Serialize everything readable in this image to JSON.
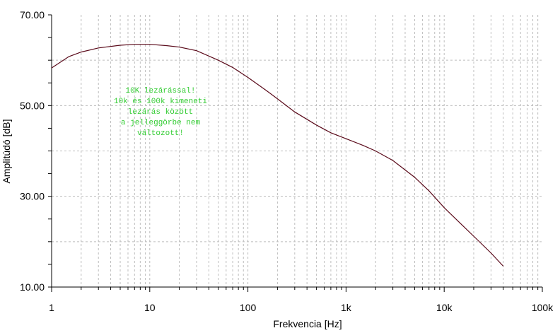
{
  "chart_data": {
    "type": "line",
    "xscale": "log",
    "xlim": [
      1,
      100000
    ],
    "ylim": [
      10,
      70
    ],
    "xlabel": "Frekvencia [Hz]",
    "ylabel": "Amplitúdó [dB]",
    "x_tick_labels": [
      "1",
      "10",
      "100",
      "1k",
      "10k",
      "100k"
    ],
    "y_tick_labels": [
      "10.00",
      "30.00",
      "50.00",
      "70.00"
    ],
    "grid": true,
    "colors": {
      "line": "#5a0a1a",
      "annotation": "#33cc33",
      "grid": "#bdbdbd",
      "axis": "#000000"
    },
    "series": [
      {
        "x": [
          1,
          1.5,
          2,
          3,
          5,
          7,
          10,
          15,
          20,
          30,
          50,
          70,
          100,
          150,
          200,
          300,
          500,
          700,
          1000,
          1500,
          2000,
          3000,
          5000,
          7000,
          10000,
          15000,
          20000,
          30000,
          40000
        ],
        "values": [
          58.3,
          60.8,
          61.8,
          62.7,
          63.3,
          63.5,
          63.5,
          63.2,
          62.9,
          62.1,
          60.0,
          58.4,
          56.2,
          53.5,
          51.5,
          48.6,
          45.7,
          44.0,
          42.7,
          41.2,
          40.0,
          37.9,
          34.2,
          31.2,
          27.5,
          23.8,
          21.2,
          17.5,
          14.6
        ]
      }
    ],
    "annotation": [
      "10K lezárással!",
      "10k és 100k kimeneti",
      "lezárás között",
      "a jelleggörbe nem",
      "változott!"
    ]
  }
}
